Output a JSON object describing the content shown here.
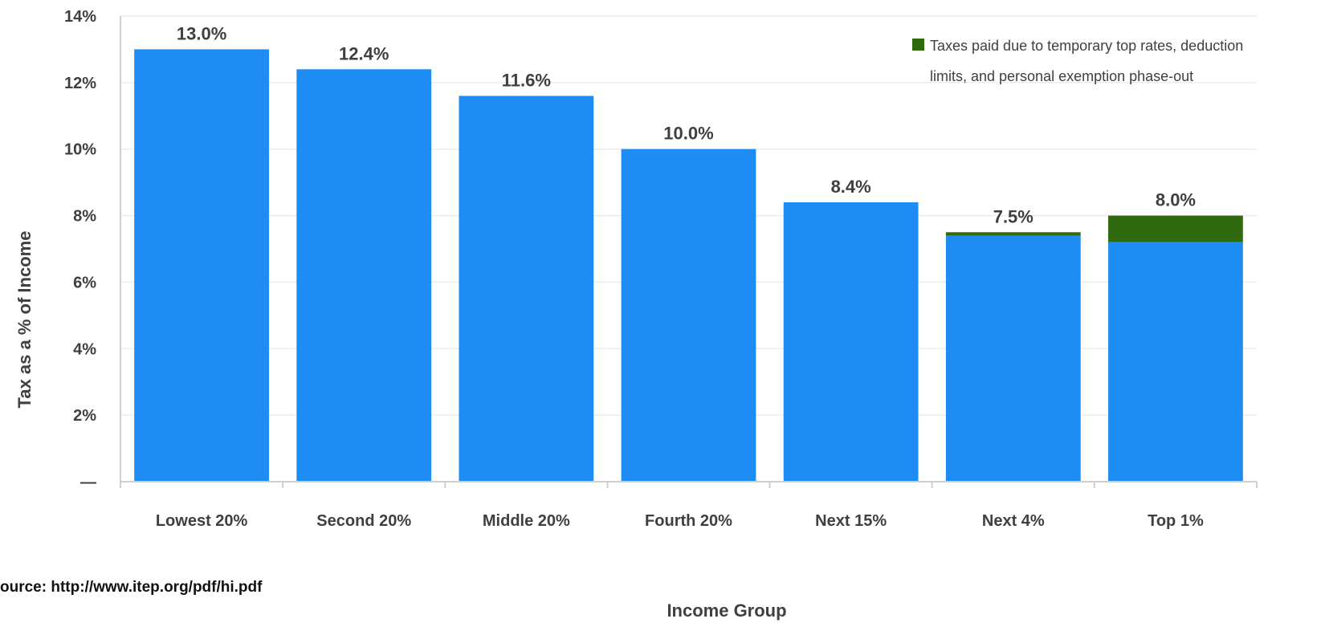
{
  "chart_data": {
    "type": "bar",
    "stacked": true,
    "categories": [
      "Lowest 20%",
      "Second 20%",
      "Middle 20%",
      "Fourth 20%",
      "Next 15%",
      "Next 4%",
      "Top 1%"
    ],
    "series": [
      {
        "values": [
          13.0,
          12.4,
          11.6,
          10.0,
          8.4,
          7.4,
          7.2
        ],
        "color": "#1e8cf2"
      },
      {
        "name": "Taxes paid due to temporary top rates, deduction limits, and personal exemption  phase-out",
        "legend_lines": [
          "Taxes paid due to temporary top rates, deduction",
          "limits, and personal exemption  phase-out"
        ],
        "values": [
          0,
          0,
          0,
          0,
          0,
          0.1,
          0.8
        ],
        "color": "#2f6b0e"
      }
    ],
    "totals": [
      13.0,
      12.4,
      11.6,
      10.0,
      8.4,
      7.5,
      8.0
    ],
    "data_labels": [
      "13.0%",
      "12.4%",
      "11.6%",
      "10.0%",
      "8.4%",
      "7.5%",
      "8.0%"
    ],
    "y_ticks": [
      0,
      2,
      4,
      6,
      8,
      10,
      12,
      14
    ],
    "y_tick_labels": [
      "—",
      "2%",
      "4%",
      "6%",
      "8%",
      "10%",
      "12%",
      "14%"
    ],
    "ylim": [
      0,
      14
    ],
    "xlabel": "Income Group",
    "ylabel": "Tax as a % of Income",
    "grid": true,
    "legend_position": "top-right"
  },
  "source": "ource: http://www.itep.org/pdf/hi.pdf"
}
